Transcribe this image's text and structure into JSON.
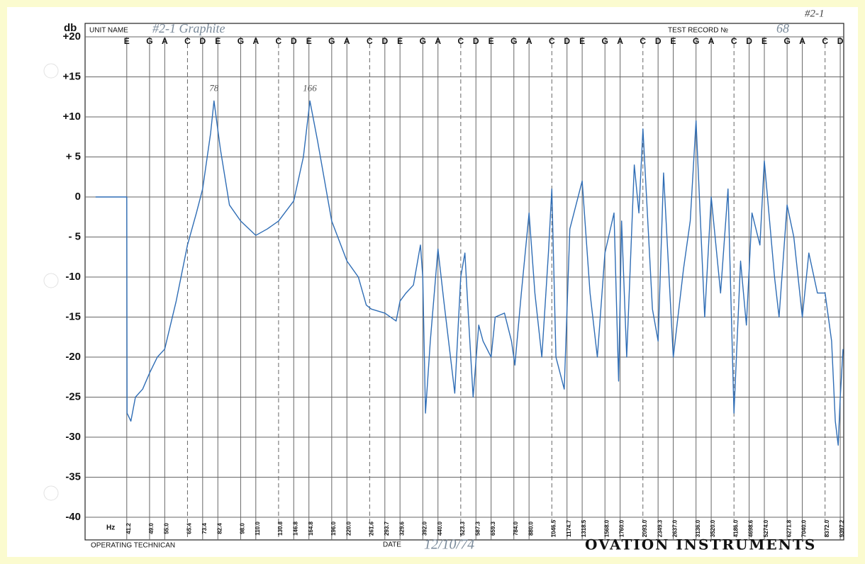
{
  "chart_data": {
    "type": "line",
    "xscale": "log",
    "y_unit": "db",
    "x_unit": "Hz",
    "xlim": [
      30,
      9650
    ],
    "ylim": [
      -40,
      20
    ],
    "yticks": [
      {
        "value": 20,
        "label": "+20"
      },
      {
        "value": 15,
        "label": "+15"
      },
      {
        "value": 10,
        "label": "+10"
      },
      {
        "value": 5,
        "label": "+ 5"
      },
      0,
      {
        "value": -5,
        "label": "- 5"
      },
      -10,
      -15,
      -20,
      -25,
      -30,
      -35,
      -40
    ],
    "xticks": [
      41.2,
      {
        "value": 49,
        "label": "49.0"
      },
      {
        "value": 55,
        "label": "55.0"
      },
      65.4,
      73.4,
      82.4,
      {
        "value": 98,
        "label": "98.0"
      },
      {
        "value": 110,
        "label": "110.0"
      },
      130.8,
      146.8,
      164.8,
      {
        "value": 196,
        "label": "196.0"
      },
      {
        "value": 220,
        "label": "220.0"
      },
      261.6,
      293.7,
      329.6,
      {
        "value": 392,
        "label": "392.0"
      },
      {
        "value": 440,
        "label": "440.0"
      },
      523.3,
      587.3,
      659.3,
      {
        "value": 784,
        "label": "784.0"
      },
      {
        "value": 880,
        "label": "880.0"
      },
      1046.5,
      1174.7,
      1318.5,
      {
        "value": 1568,
        "label": "1568.0"
      },
      {
        "value": 1760,
        "label": "1760.0"
      },
      {
        "value": 2093,
        "label": "2093.0"
      },
      2349.3,
      {
        "value": 2637,
        "label": "2637.0"
      },
      {
        "value": 3136,
        "label": "3136.0"
      },
      {
        "value": 3520,
        "label": "3520.0"
      },
      {
        "value": 4186,
        "label": "4186.0"
      },
      4698.6,
      {
        "value": 5274,
        "label": "5274.0"
      },
      6271.8,
      {
        "value": 7040,
        "label": "7040.0"
      },
      {
        "value": 8372,
        "label": "8372.0"
      },
      9397.2
    ],
    "notes": [
      "E",
      "G",
      "A",
      "C",
      "D",
      "E",
      "G",
      "A",
      "C",
      "D",
      "E",
      "G",
      "A",
      "C",
      "D",
      "E",
      "G",
      "A",
      "C",
      "D",
      "E",
      "G",
      "A",
      "C",
      "D",
      "E",
      "G",
      "A",
      "C",
      "D",
      "E",
      "G",
      "A",
      "C",
      "D",
      "E",
      "G",
      "A",
      "C",
      "D"
    ],
    "grid": true,
    "x": [
      32.5,
      41.2,
      41.3,
      42.5,
      44,
      46.5,
      49,
      52,
      55,
      60,
      65.4,
      70,
      73.4,
      78,
      80,
      84,
      90,
      98,
      110,
      120,
      130.8,
      146.8,
      158,
      166,
      176,
      196,
      220,
      240,
      255,
      265,
      293.7,
      320,
      329.6,
      345,
      365,
      385,
      392,
      400,
      415,
      440,
      460,
      500,
      523.3,
      540,
      555,
      575,
      600,
      620,
      659.3,
      680,
      730,
      770,
      790,
      830,
      880,
      920,
      970,
      1020,
      1046.5,
      1080,
      1150,
      1200,
      1318.5,
      1400,
      1480,
      1568,
      1680,
      1740,
      1780,
      1850,
      1960,
      2030,
      2093,
      2250,
      2349.3,
      2450,
      2637,
      2850,
      3000,
      3136,
      3350,
      3520,
      3780,
      4000,
      4186,
      4400,
      4600,
      4800,
      5100,
      5274,
      5700,
      5900,
      6271.8,
      6600,
      7040,
      7400,
      7900,
      8372,
      8800,
      9050,
      9250,
      9397.2,
      9600
    ],
    "series": [
      {
        "color": "#2f6db5",
        "values": [
          0,
          0,
          -27,
          -28,
          -25,
          -24,
          -22,
          -20,
          -19,
          -13,
          -6,
          -2,
          1,
          8,
          12,
          6,
          -1,
          -3,
          -4.8,
          -4,
          -3,
          -0.5,
          5,
          12,
          7,
          -3,
          -8,
          -10,
          -13.5,
          -14,
          -14.5,
          -15.5,
          -13,
          -12,
          -11,
          -6,
          -10,
          -27,
          -18,
          -6.5,
          -13,
          -24.5,
          -10,
          -7,
          -15,
          -25,
          -16,
          -18,
          -20,
          -15,
          -14.5,
          -18,
          -21,
          -12,
          -2,
          -12,
          -20,
          -7,
          1,
          -20,
          -24,
          -4,
          2,
          -12,
          -20,
          -7,
          -2,
          -23,
          -3,
          -20,
          4,
          -2,
          8.5,
          -14,
          -18,
          3,
          -20,
          -9,
          -3,
          9.5,
          -15,
          0,
          -12,
          1,
          -27,
          -8,
          -16,
          -2,
          -6,
          4.5,
          -10,
          -15,
          -1,
          -5,
          -15,
          -7,
          -12,
          -12,
          -18,
          -28,
          -31,
          -25,
          -19
        ]
      }
    ],
    "annotations": [
      {
        "text": "78",
        "x": 80,
        "y": 13.5
      },
      {
        "text": "166",
        "x": 166,
        "y": 13.5
      }
    ],
    "form": {
      "unit_name_label": "UNIT NAME",
      "unit_name": "#2-1 Graphite",
      "test_record_label": "TEST RECORD №",
      "test_record": "68",
      "corner_note": "#2-1",
      "technician_label": "OPERATING TECHNICAN",
      "date_label": "DATE",
      "date": "12/10/74",
      "brand": "OVATION INSTRUMENTS"
    }
  }
}
